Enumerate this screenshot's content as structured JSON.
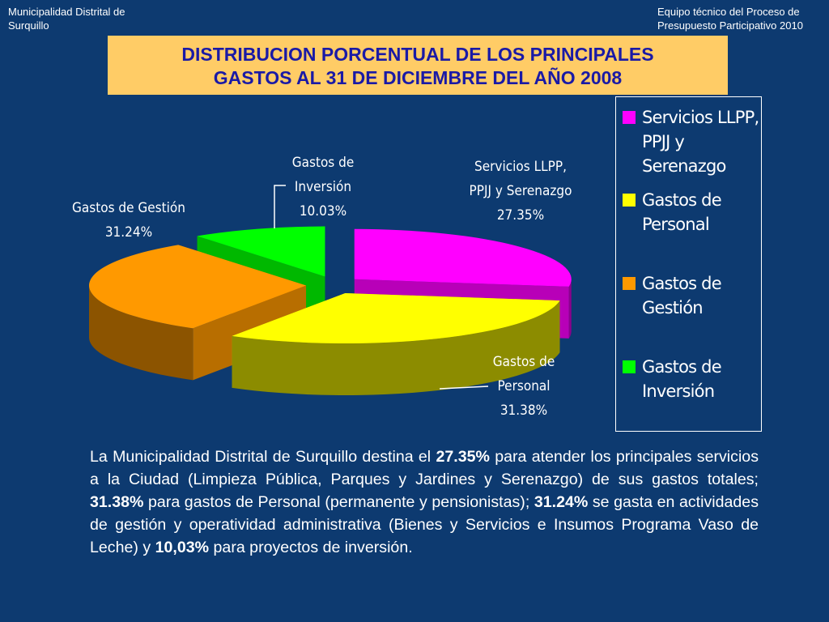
{
  "header": {
    "left_line1": "Municipalidad Distrital de",
    "left_line2": "Surquillo",
    "right_line1": "Equipo técnico del Proceso de",
    "right_line2": "Presupuesto Participativo 2010"
  },
  "title": {
    "line1": "DISTRIBUCION PORCENTUAL DE LOS PRINCIPALES",
    "line2": "GASTOS  AL 31 DE DICIEMBRE DEL AÑO 2008"
  },
  "chart_data": {
    "type": "pie",
    "style": "3d-exploded",
    "slices": [
      {
        "name": "Servicios LLPP, PPJJ y Serenazgo",
        "value": 27.35,
        "label_line1": "Servicios LLPP,",
        "label_line2": "PPJJ y Serenazgo",
        "label_value": "27.35%",
        "color": "#ff00ff"
      },
      {
        "name": "Gastos de Personal",
        "value": 31.38,
        "label_line1": "Gastos de",
        "label_line2": "Personal",
        "label_value": "31.38%",
        "color": "#ffff00"
      },
      {
        "name": "Gastos de Gestión",
        "value": 31.24,
        "label_line1": "Gastos de Gestión",
        "label_line2": "",
        "label_value": "31.24%",
        "color": "#ff9900"
      },
      {
        "name": "Gastos de Inversión",
        "value": 10.03,
        "label_line1": "Gastos de",
        "label_line2": "Inversión",
        "label_value": "10.03%",
        "color": "#00ff00"
      }
    ],
    "legend": {
      "position": "right",
      "items": [
        {
          "line1": "Servicios LLPP,",
          "line2": "PPJJ y",
          "line3": "Serenazgo",
          "color": "#ff00ff"
        },
        {
          "line1": "Gastos de",
          "line2": "Personal",
          "line3": "",
          "color": "#ffff00"
        },
        {
          "line1": "Gastos de",
          "line2": "Gestión",
          "line3": "",
          "color": "#ff9900"
        },
        {
          "line1": "Gastos de",
          "line2": "Inversión",
          "line3": "",
          "color": "#00ff00"
        }
      ]
    }
  },
  "description": {
    "s1": "La Municipalidad Distrital de Surquillo destina el ",
    "b1": "27.35%",
    "s2": " para atender los principales servicios a la Ciudad (Limpieza Pública, Parques y Jardines y Serenazgo)   de sus gastos totales;  ",
    "b2": "31.38%",
    "s3": " para gastos de Personal (permanente y pensionistas);  ",
    "b3": "31.24%",
    "s4": " se gasta en actividades de gestión y operatividad administrativa (Bienes y Servicios e Insumos Programa Vaso de Leche) y  ",
    "b4": "10,03%",
    "s5": "  para proyectos de inversión."
  }
}
